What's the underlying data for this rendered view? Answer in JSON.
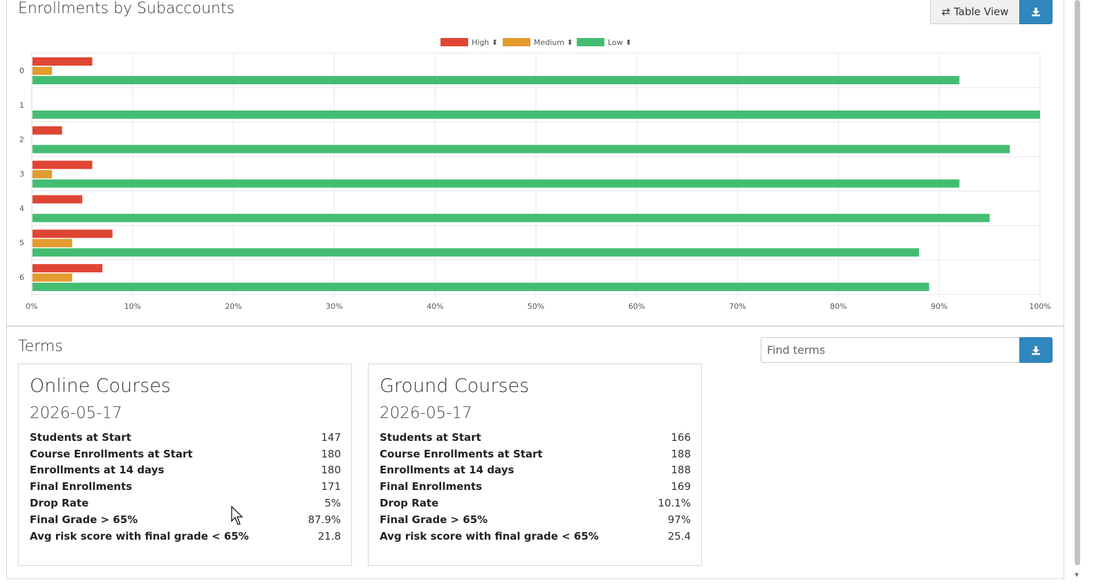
{
  "chart_section": {
    "title": "Enrollments by Subaccounts",
    "table_view_label": "Table View",
    "download_icon": "download-icon",
    "swap_icon": "arrows-swap-icon"
  },
  "chart_data": {
    "type": "bar",
    "orientation": "horizontal",
    "categories": [
      "0",
      "1",
      "2",
      "3",
      "4",
      "5",
      "6"
    ],
    "series": [
      {
        "name": "High",
        "color": "#e04534",
        "values": [
          6,
          0,
          3,
          6,
          5,
          8,
          7
        ]
      },
      {
        "name": "Medium",
        "color": "#e39b2e",
        "values": [
          2,
          0,
          0,
          2,
          0,
          4,
          4
        ]
      },
      {
        "name": "Low",
        "color": "#44bd72",
        "values": [
          92,
          100,
          97,
          92,
          95,
          88,
          89
        ]
      }
    ],
    "x_ticks": [
      "0%",
      "10%",
      "20%",
      "30%",
      "40%",
      "50%",
      "60%",
      "70%",
      "80%",
      "90%",
      "100%"
    ],
    "xlim": [
      0,
      100
    ],
    "grid": true,
    "legend_position": "top-center",
    "legend_sort_icon": "⬍"
  },
  "terms_section": {
    "title": "Terms",
    "search_placeholder": "Find terms"
  },
  "cards": [
    {
      "title": "Online Courses",
      "date": "2026-05-17",
      "stats": [
        {
          "label": "Students at Start",
          "value": "147"
        },
        {
          "label": "Course Enrollments at Start",
          "value": "180"
        },
        {
          "label": "Enrollments at 14 days",
          "value": "180"
        },
        {
          "label": "Final Enrollments",
          "value": "171"
        },
        {
          "label": "Drop Rate",
          "value": "5%"
        },
        {
          "label": "Final Grade > 65%",
          "value": "87.9%"
        },
        {
          "label": "Avg risk score with final grade < 65%",
          "value": "21.8"
        }
      ]
    },
    {
      "title": "Ground Courses",
      "date": "2026-05-17",
      "stats": [
        {
          "label": "Students at Start",
          "value": "166"
        },
        {
          "label": "Course Enrollments at Start",
          "value": "188"
        },
        {
          "label": "Enrollments at 14 days",
          "value": "188"
        },
        {
          "label": "Final Enrollments",
          "value": "169"
        },
        {
          "label": "Drop Rate",
          "value": "10.1%"
        },
        {
          "label": "Final Grade > 65%",
          "value": "97%"
        },
        {
          "label": "Avg risk score with final grade < 65%",
          "value": "25.4"
        }
      ]
    }
  ]
}
